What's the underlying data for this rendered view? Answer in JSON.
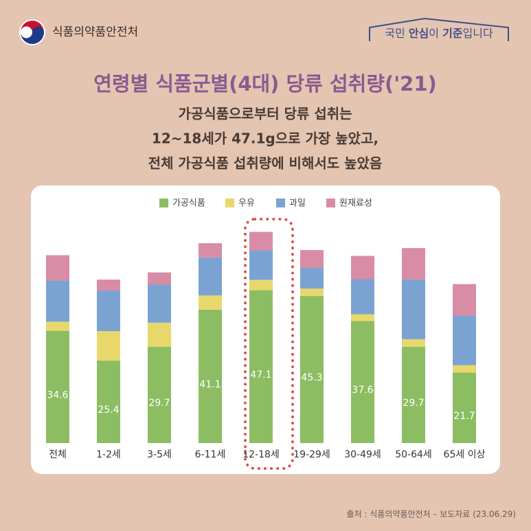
{
  "header": {
    "logo_text": "식품의약품안전처",
    "slogan": [
      "국민 ",
      "안심",
      "이 ",
      "기준",
      "입니다"
    ]
  },
  "chart_data": {
    "type": "stacked_bar",
    "title": "연령별 식품군별(4대) 당류 섭취량('21)",
    "subtitle": [
      "가공식품으로부터 당류 섭취는",
      "12~18세가 47.1g으로 가장 높았고,",
      "전체 가공식품 섭취량에 비해서도 높았음"
    ],
    "categories": [
      "전체",
      "1-2세",
      "3-5세",
      "6-11세",
      "12-18세",
      "19-29세",
      "30-49세",
      "50-64세",
      "65세 이상"
    ],
    "series": [
      {
        "name": "가공식품",
        "color": "#8cbd62",
        "values": [
          34.6,
          25.4,
          29.7,
          41.1,
          47.1,
          45.3,
          37.6,
          29.7,
          21.7
        ]
      },
      {
        "name": "우유",
        "color": "#e8d86c",
        "values": [
          2.8,
          9.1,
          7.4,
          4.4,
          3.2,
          2.3,
          2.1,
          2.3,
          2.3
        ]
      },
      {
        "name": "과일",
        "color": "#7ba3d2",
        "values": [
          12.7,
          12.5,
          11.7,
          11.7,
          9.1,
          6.4,
          10.8,
          18.4,
          15.3
        ]
      },
      {
        "name": "원재료성",
        "color": "#d98ca6",
        "values": [
          7.8,
          3.4,
          3.8,
          4.4,
          5.7,
          5.5,
          7.2,
          9.7,
          9.7
        ]
      }
    ],
    "ylim": [
      0,
      65
    ],
    "source": "출처 : 식품의약품안전처 – 보도자료 (23.06.29)"
  }
}
